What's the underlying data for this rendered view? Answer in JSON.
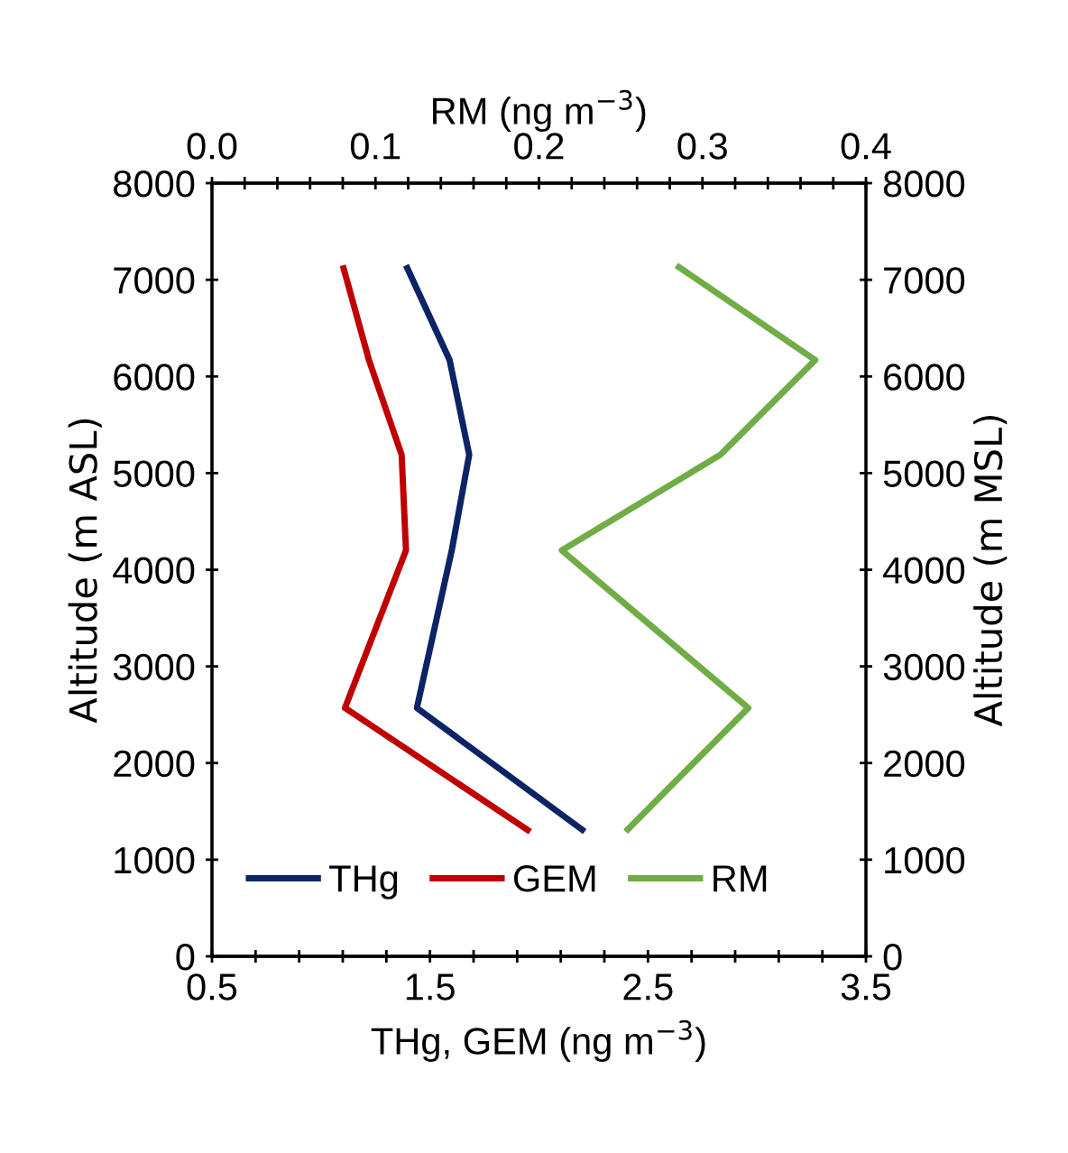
{
  "chart_data": {
    "type": "line",
    "xlabel": "THg, GEM (ng m$^{−3}$)",
    "x2label": "RM (ng m$^{−3}$)",
    "ylabel": "Altitude (m ASL)",
    "y2label": "Altitude (m MSL)",
    "series": [
      {
        "name": "THg",
        "color": "#0c2466",
        "x": [
          1.39,
          1.59,
          1.68,
          1.6,
          1.44,
          2.21
        ],
        "values": [
          7150,
          6170,
          5190,
          4200,
          2570,
          1290
        ]
      },
      {
        "name": "GEM",
        "color": "#c00000",
        "x": [
          1.1,
          1.22,
          1.37,
          1.39,
          1.11,
          1.96
        ],
        "values": [
          7150,
          6170,
          5190,
          4200,
          2570,
          1290
        ]
      },
      {
        "name": "RM",
        "color": "#70ad47",
        "axis": "x2",
        "x": [
          0.284,
          0.369,
          0.311,
          0.214,
          0.328,
          0.253
        ],
        "values": [
          7150,
          6170,
          5190,
          4200,
          2570,
          1290
        ]
      }
    ],
    "xlim": [
      0.5,
      3.5
    ],
    "xticks": [
      {
        "value": 0.5,
        "label": "0.5"
      },
      {
        "value": 0.7,
        "label": null
      },
      {
        "value": 0.9,
        "label": null
      },
      {
        "value": 1.1,
        "label": null
      },
      {
        "value": 1.3,
        "label": null
      },
      {
        "value": 1.5,
        "label": "1.5"
      },
      {
        "value": 1.7,
        "label": null
      },
      {
        "value": 1.9,
        "label": null
      },
      {
        "value": 2.1,
        "label": null
      },
      {
        "value": 2.3,
        "label": null
      },
      {
        "value": 2.5,
        "label": "2.5"
      },
      {
        "value": 2.7,
        "label": null
      },
      {
        "value": 2.9,
        "label": null
      },
      {
        "value": 3.1,
        "label": null
      },
      {
        "value": 3.3,
        "label": null
      },
      {
        "value": 3.5,
        "label": "3.5"
      }
    ],
    "x2lim": [
      0.0,
      0.4
    ],
    "x2ticks": [
      {
        "value": 0.0,
        "label": "0.0"
      },
      {
        "value": 0.02,
        "label": null
      },
      {
        "value": 0.04,
        "label": null
      },
      {
        "value": 0.06,
        "label": null
      },
      {
        "value": 0.08,
        "label": null
      },
      {
        "value": 0.1,
        "label": "0.1"
      },
      {
        "value": 0.12,
        "label": null
      },
      {
        "value": 0.14,
        "label": null
      },
      {
        "value": 0.16,
        "label": null
      },
      {
        "value": 0.18,
        "label": null
      },
      {
        "value": 0.2,
        "label": "0.2"
      },
      {
        "value": 0.22,
        "label": null
      },
      {
        "value": 0.24,
        "label": null
      },
      {
        "value": 0.26,
        "label": null
      },
      {
        "value": 0.28,
        "label": null
      },
      {
        "value": 0.3,
        "label": "0.3"
      },
      {
        "value": 0.32,
        "label": null
      },
      {
        "value": 0.34,
        "label": null
      },
      {
        "value": 0.36,
        "label": null
      },
      {
        "value": 0.38,
        "label": null
      },
      {
        "value": 0.4,
        "label": "0.4"
      }
    ],
    "ylim": [
      0,
      8000
    ],
    "yticks": [
      0,
      1000,
      2000,
      3000,
      4000,
      5000,
      6000,
      7000,
      8000
    ],
    "y2lim": [
      0,
      8000
    ],
    "y2ticks": [
      0,
      1000,
      2000,
      3000,
      4000,
      5000,
      6000,
      7000,
      8000
    ],
    "legend": "bottom left",
    "grid": false,
    "marker": "none",
    "line_style": "solid"
  }
}
